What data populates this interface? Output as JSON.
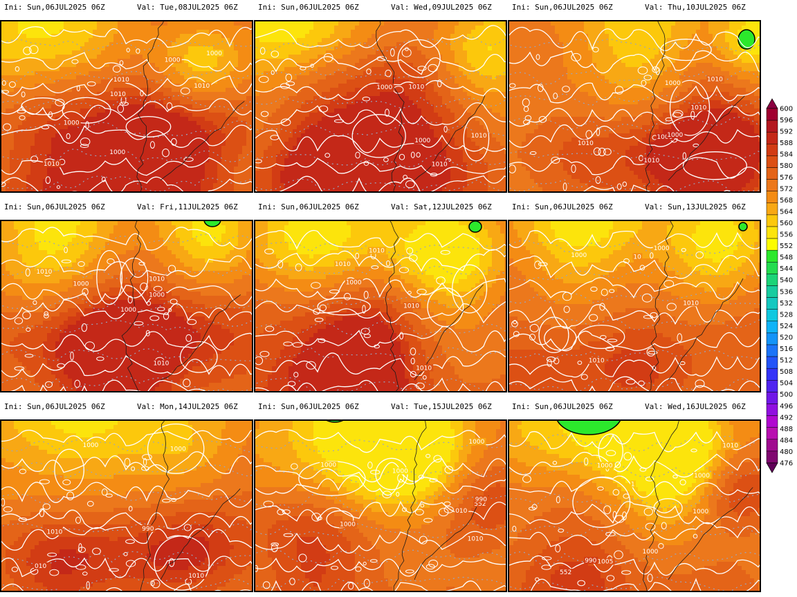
{
  "panels": [
    {
      "ini": "Ini: Sun,06JUL2025 06Z",
      "val": "Val: Tue,08JUL2025 06Z",
      "contour_labels": [
        "1010",
        "1010",
        "1000",
        "1000",
        "1000",
        "1000",
        "1010",
        "1010"
      ]
    },
    {
      "ini": "Ini: Sun,06JUL2025 06Z",
      "val": "Val: Wed,09JUL2025 06Z",
      "contour_labels": [
        "1010",
        "1010",
        "1000",
        "1010",
        "1000"
      ]
    },
    {
      "ini": "Ini: Sun,06JUL2025 06Z",
      "val": "Val: Thu,10JUL2025 06Z",
      "contour_labels": [
        "1010",
        "1010",
        "1010",
        "1000",
        "1000",
        "1010",
        "1000"
      ]
    },
    {
      "ini": "Ini: Sun,06JUL2025 06Z",
      "val": "Val: Fri,11JUL2025 06Z",
      "contour_labels": [
        "1010",
        "1010",
        "1000",
        "1000",
        "1010",
        "1000"
      ]
    },
    {
      "ini": "Ini: Sun,06JUL2025 06Z",
      "val": "Val: Sat,12JUL2025 06Z",
      "contour_labels": [
        "1010",
        "1010",
        "1010",
        "1000",
        "1010"
      ]
    },
    {
      "ini": "Ini: Sun,06JUL2025 06Z",
      "val": "Val: Sun,13JUL2025 06Z",
      "contour_labels": [
        "1010",
        "10",
        "1010",
        "1000",
        "1000"
      ]
    },
    {
      "ini": "Ini: Sun,06JUL2025 06Z",
      "val": "Val: Mon,14JUL2025 06Z",
      "contour_labels": [
        "1010",
        "1000",
        "1010",
        "010",
        "990",
        "1000"
      ]
    },
    {
      "ini": "Ini: Sun,06JUL2025 06Z",
      "val": "Val: Tue,15JUL2025 06Z",
      "contour_labels": [
        "552",
        "1000",
        "010",
        "1010",
        "1000",
        "1000",
        "1000",
        "990"
      ]
    },
    {
      "ini": "Ini: Sun,06JUL2025 06Z",
      "val": "Val: Wed,16JUL2025 06Z",
      "contour_labels": [
        "1000",
        "552",
        "1010",
        "1000",
        "1000",
        "1000",
        "1005",
        "990",
        "1"
      ]
    }
  ],
  "colorbar": {
    "labels": [
      "600",
      "596",
      "592",
      "588",
      "584",
      "580",
      "576",
      "572",
      "568",
      "564",
      "560",
      "556",
      "552",
      "548",
      "544",
      "540",
      "536",
      "532",
      "528",
      "524",
      "520",
      "516",
      "512",
      "508",
      "504",
      "500",
      "496",
      "492",
      "488",
      "484",
      "480",
      "476"
    ],
    "colors": [
      "#8b0040",
      "#a00030",
      "#b41820",
      "#c42818",
      "#d23c14",
      "#dc5014",
      "#e46418",
      "#ec781c",
      "#f48c14",
      "#f8a814",
      "#fcc80c",
      "#fce40c",
      "#fcfc00",
      "#2ce82c",
      "#24dc50",
      "#1cd478",
      "#18cca0",
      "#14c8c0",
      "#10c8e0",
      "#10b4f8",
      "#1494f8",
      "#1c74f8",
      "#2454f8",
      "#3434f8",
      "#5024f0",
      "#7018e8",
      "#9010e0",
      "#b008d0",
      "#b810b0",
      "#a00c90",
      "#800870",
      "#600058"
    ]
  }
}
